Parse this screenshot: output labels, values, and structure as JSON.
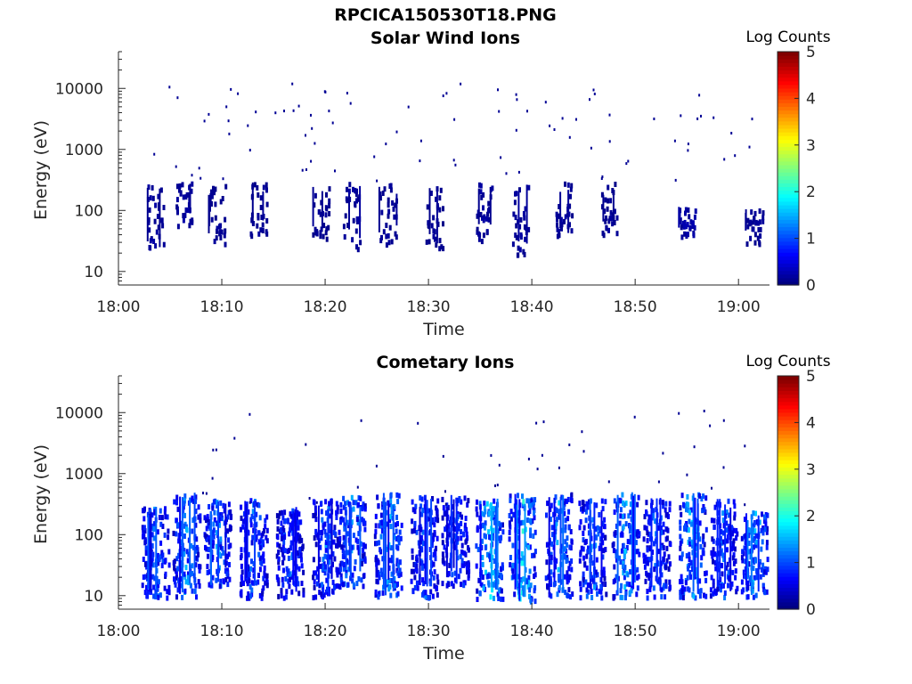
{
  "figure": {
    "title": "RPCICA150530T18.PNG"
  },
  "colors": {
    "colormap": "jet",
    "axis": "#262626",
    "background": "#ffffff"
  },
  "chart_data": [
    {
      "type": "heatmap",
      "title": "Solar Wind Ions",
      "xlabel": "Time",
      "ylabel": "Energy (eV)",
      "x_ticks": [
        "18:00",
        "18:10",
        "18:20",
        "18:30",
        "18:40",
        "18:50",
        "19:00"
      ],
      "y_ticks": [
        "10",
        "100",
        "1000",
        "10000"
      ],
      "y_scale": "log",
      "ylim": [
        6,
        40000
      ],
      "xlim_minutes": [
        0,
        63
      ],
      "colorbar": {
        "label": "Log Counts",
        "ticks": [
          "0",
          "1",
          "2",
          "3",
          "4",
          "5"
        ],
        "range": [
          0,
          5
        ]
      },
      "summary": "Sparse solar wind ion counts (log counts mostly 0-0.3) across 18:03-19:02, concentrated at 20-300 eV with a denser patch near 18:55 at 40-100 eV.",
      "clusters": [
        {
          "t": 3.5,
          "emin": 25,
          "emax": 280,
          "level": 0.2
        },
        {
          "t": 6.3,
          "emin": 60,
          "emax": 300,
          "level": 0.2
        },
        {
          "t": 9.5,
          "emin": 30,
          "emax": 280,
          "level": 0.15
        },
        {
          "t": 13.5,
          "emin": 40,
          "emax": 300,
          "level": 0.15
        },
        {
          "t": 19.5,
          "emin": 30,
          "emax": 250,
          "level": 0.15
        },
        {
          "t": 22.5,
          "emin": 25,
          "emax": 300,
          "level": 0.2
        },
        {
          "t": 26.0,
          "emin": 30,
          "emax": 300,
          "level": 0.15
        },
        {
          "t": 30.5,
          "emin": 25,
          "emax": 250,
          "level": 0.15
        },
        {
          "t": 35.3,
          "emin": 30,
          "emax": 300,
          "level": 0.2
        },
        {
          "t": 38.8,
          "emin": 20,
          "emax": 280,
          "level": 0.2
        },
        {
          "t": 43.0,
          "emin": 40,
          "emax": 300,
          "level": 0.2
        },
        {
          "t": 47.5,
          "emin": 40,
          "emax": 300,
          "level": 0.15
        },
        {
          "t": 55.0,
          "emin": 40,
          "emax": 120,
          "level": 0.3
        },
        {
          "t": 61.5,
          "emin": 30,
          "emax": 120,
          "level": 0.2
        }
      ]
    },
    {
      "type": "heatmap",
      "title": "Cometary Ions",
      "xlabel": "Time",
      "ylabel": "Energy (eV)",
      "x_ticks": [
        "18:00",
        "18:10",
        "18:20",
        "18:30",
        "18:40",
        "18:50",
        "19:00"
      ],
      "y_ticks": [
        "10",
        "100",
        "1000",
        "10000"
      ],
      "y_scale": "log",
      "ylim": [
        6,
        40000
      ],
      "xlim_minutes": [
        0,
        63
      ],
      "colorbar": {
        "label": "Log Counts",
        "ticks": [
          "0",
          "1",
          "2",
          "3",
          "4",
          "5"
        ],
        "range": [
          0,
          5
        ]
      },
      "summary": "Quasi-periodic bursts of cometary ions between 10 and 500 eV roughly every 3-4 minutes from 18:03 to 19:02, peak log counts about 2 near 30-100 eV.",
      "clusters": [
        {
          "t": 3.5,
          "emin": 10,
          "emax": 300,
          "level": 1.4
        },
        {
          "t": 6.5,
          "emin": 10,
          "emax": 500,
          "level": 1.5
        },
        {
          "t": 9.5,
          "emin": 15,
          "emax": 400,
          "level": 1.4
        },
        {
          "t": 13.0,
          "emin": 10,
          "emax": 400,
          "level": 1.3
        },
        {
          "t": 16.5,
          "emin": 10,
          "emax": 300,
          "level": 1.2
        },
        {
          "t": 20.0,
          "emin": 10,
          "emax": 400,
          "level": 1.3
        },
        {
          "t": 22.5,
          "emin": 15,
          "emax": 450,
          "level": 1.5
        },
        {
          "t": 26.0,
          "emin": 10,
          "emax": 500,
          "level": 1.7
        },
        {
          "t": 29.5,
          "emin": 10,
          "emax": 450,
          "level": 1.3
        },
        {
          "t": 32.5,
          "emin": 15,
          "emax": 450,
          "level": 1.3
        },
        {
          "t": 35.8,
          "emin": 8,
          "emax": 400,
          "level": 1.9
        },
        {
          "t": 39.0,
          "emin": 8,
          "emax": 500,
          "level": 2.0
        },
        {
          "t": 42.5,
          "emin": 10,
          "emax": 500,
          "level": 1.6
        },
        {
          "t": 45.8,
          "emin": 10,
          "emax": 400,
          "level": 1.4
        },
        {
          "t": 49.0,
          "emin": 10,
          "emax": 500,
          "level": 1.6
        },
        {
          "t": 52.0,
          "emin": 10,
          "emax": 400,
          "level": 1.3
        },
        {
          "t": 55.5,
          "emin": 10,
          "emax": 500,
          "level": 1.8
        },
        {
          "t": 58.5,
          "emin": 10,
          "emax": 400,
          "level": 1.3
        },
        {
          "t": 61.5,
          "emin": 10,
          "emax": 250,
          "level": 1.6
        }
      ]
    }
  ]
}
